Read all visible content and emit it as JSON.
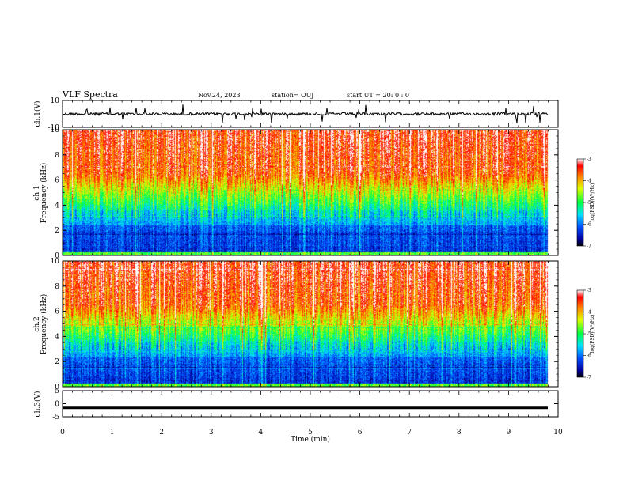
{
  "header": {
    "title": "VLF Spectra",
    "date": "Nov.24, 2023",
    "station": "station= OUJ",
    "start": "start  UT =   20: 0  : 0"
  },
  "chart_data": [
    {
      "type": "line",
      "panel": "ch1-waveform",
      "ylabel": "ch.1(V)",
      "ylim": [
        -10,
        10
      ],
      "yticks": [
        "10",
        "-10"
      ],
      "xlim": [
        0,
        10
      ],
      "baseline": 0
    },
    {
      "type": "heatmap",
      "panel": "ch1-spectrogram",
      "ylabel_line1": "ch.1",
      "ylabel_line2": "Frequency  (kHz)",
      "ylim": [
        0,
        10
      ],
      "yticks": [
        "0",
        "2",
        "4",
        "6",
        "8",
        "10"
      ],
      "xlim": [
        0,
        10
      ],
      "colorbar": {
        "label": "log(PSD)(V²/Hz)",
        "range": [
          -7,
          -3
        ],
        "ticks": [
          "-3",
          "-4",
          "-5",
          "-6",
          "-7"
        ]
      }
    },
    {
      "type": "heatmap",
      "panel": "ch2-spectrogram",
      "ylabel_line1": "ch.2",
      "ylabel_line2": "Frequency  (kHz)",
      "ylim": [
        0,
        10
      ],
      "yticks": [
        "0",
        "2",
        "4",
        "6",
        "8",
        "10"
      ],
      "xlim": [
        0,
        10
      ],
      "colorbar": {
        "label": "log(PSD)(V²/Hz)",
        "range": [
          -7,
          -3
        ],
        "ticks": [
          "-3",
          "-4",
          "-5",
          "-6",
          "-7"
        ]
      }
    },
    {
      "type": "line",
      "panel": "ch3-waveform",
      "ylabel": "ch.3(V)",
      "ylim": [
        -5,
        5
      ],
      "yticks": [
        "5",
        "0",
        "-5"
      ],
      "xlim": [
        0,
        10
      ],
      "baseline": -1.6
    }
  ],
  "xaxis": {
    "label": "Time  (min)",
    "ticks": [
      "0",
      "1",
      "2",
      "3",
      "4",
      "5",
      "6",
      "7",
      "8",
      "9",
      "10"
    ]
  },
  "colors": {
    "high": "#ff2a00",
    "mid": "#00ff60",
    "low": "#0010a0"
  }
}
